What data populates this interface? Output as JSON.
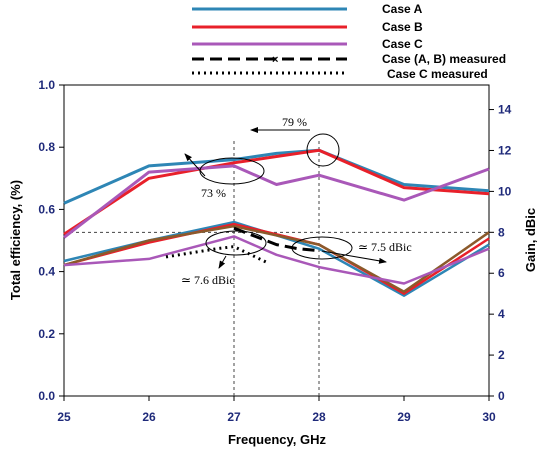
{
  "chart_data": {
    "type": "line",
    "xlabel": "Frequency, GHz",
    "ylabel_left": "Total efficiency, (%)",
    "ylabel_right": "Gain, dBic",
    "x_ticks": [
      "25",
      "26",
      "27",
      "28",
      "29",
      "30"
    ],
    "y_left_ticks": [
      "0.0",
      "0.2",
      "0.4",
      "0.6",
      "0.8",
      "1.0"
    ],
    "y_right_ticks": [
      "0",
      "2",
      "4",
      "6",
      "8",
      "10",
      "12",
      "14"
    ],
    "xlim": [
      25,
      30
    ],
    "ylim_left": [
      0,
      1.0
    ],
    "ylim_right": [
      0,
      15.2
    ],
    "legend_position": "top",
    "colors": {
      "case_a": "#2e86b5",
      "case_b": "#e8202a",
      "case_c": "#a958b8",
      "gain_b_alt": "#8b5a2b",
      "measured": "#000000"
    },
    "legend": [
      {
        "label": "Case A",
        "color": "#2e86b5",
        "style": "solid"
      },
      {
        "label": "Case B",
        "color": "#e8202a",
        "style": "solid"
      },
      {
        "label": "Case C",
        "color": "#a958b8",
        "style": "solid"
      },
      {
        "label": "Case (A, B) measured",
        "color": "#000000",
        "style": "dashed"
      },
      {
        "label": "Case C measured",
        "color": "#000000",
        "style": "dotted"
      }
    ],
    "efficiency_series": [
      {
        "key": "case_a",
        "x": [
          25,
          26,
          27,
          27.5,
          28,
          29,
          30
        ],
        "y": [
          0.62,
          0.74,
          0.76,
          0.78,
          0.79,
          0.68,
          0.66
        ]
      },
      {
        "key": "case_b",
        "x": [
          25,
          26,
          27,
          27.5,
          28,
          29,
          30
        ],
        "y": [
          0.52,
          0.7,
          0.75,
          0.77,
          0.79,
          0.67,
          0.65
        ]
      },
      {
        "key": "case_c",
        "x": [
          25,
          26,
          27,
          27.5,
          28,
          29,
          30
        ],
        "y": [
          0.51,
          0.72,
          0.74,
          0.68,
          0.71,
          0.63,
          0.73
        ]
      }
    ],
    "gain_series": [
      {
        "key": "case_a",
        "x": [
          25,
          26,
          27,
          28,
          29,
          30
        ],
        "y": [
          6.6,
          7.6,
          8.5,
          7.2,
          4.9,
          7.4
        ]
      },
      {
        "key": "case_b",
        "x": [
          25,
          26,
          27,
          28,
          29,
          30
        ],
        "y": [
          6.4,
          7.5,
          8.4,
          7.4,
          5.0,
          7.7
        ]
      },
      {
        "key": "gain_b_alt",
        "x": [
          25,
          26,
          27,
          28,
          29,
          30
        ],
        "y": [
          6.4,
          7.6,
          8.3,
          7.4,
          5.1,
          8.0
        ]
      },
      {
        "key": "case_c",
        "x": [
          25,
          26,
          27,
          27.5,
          28,
          29,
          30
        ],
        "y": [
          6.4,
          6.7,
          7.8,
          6.9,
          6.3,
          5.5,
          7.2
        ]
      }
    ],
    "measured_series": [
      {
        "key": "ab_measured",
        "style": "dashed",
        "x": [
          27,
          27.25,
          27.5,
          27.75,
          28
        ],
        "y": [
          8.2,
          7.8,
          7.4,
          7.2,
          7.1
        ]
      },
      {
        "key": "c_measured",
        "style": "dotted",
        "x": [
          26.2,
          26.5,
          26.8,
          27,
          27.2,
          27.4
        ],
        "y": [
          6.8,
          7.0,
          7.2,
          7.3,
          6.9,
          6.5
        ]
      }
    ],
    "reference_lines": {
      "vertical_x": [
        27,
        28
      ],
      "horizontal_gain_dbic": 8.0
    },
    "annotations": [
      {
        "text": "79 %"
      },
      {
        "text": "73 %"
      },
      {
        "text": "≃ 7.6 dBic"
      },
      {
        "text": "≃ 7.5 dBic"
      }
    ]
  }
}
